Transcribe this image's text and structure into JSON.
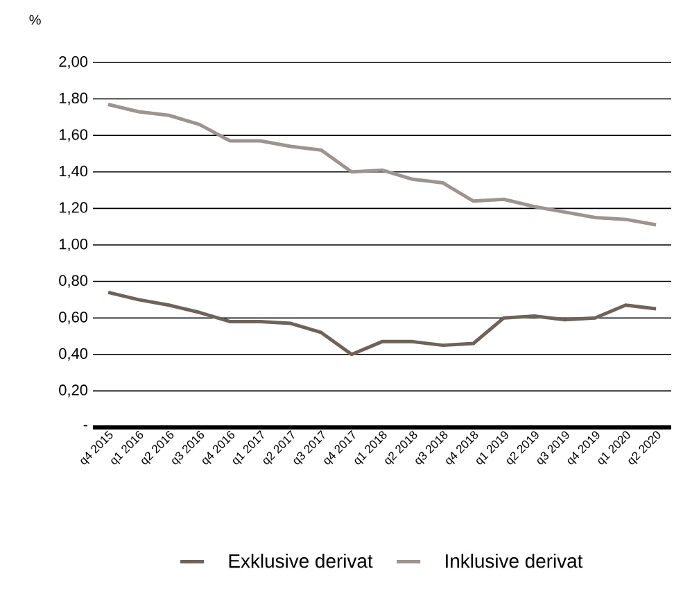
{
  "chart_data": {
    "type": "line",
    "ylabel": "%",
    "categories": [
      "q4 2015",
      "q1 2016",
      "q2 2016",
      "q3 2016",
      "q4 2016",
      "q1 2017",
      "q2 2017",
      "q3 2017",
      "q4 2017",
      "q1 2018",
      "q2 2018",
      "q3 2018",
      "q4 2018",
      "q1 2019",
      "q2 2019",
      "q3 2019",
      "q4 2019",
      "q1 2020",
      "q2 2020"
    ],
    "series": [
      {
        "name": "Exklusive derivat",
        "color": "#6e625b",
        "values": [
          0.74,
          0.7,
          0.67,
          0.63,
          0.58,
          0.58,
          0.57,
          0.52,
          0.4,
          0.47,
          0.47,
          0.45,
          0.46,
          0.6,
          0.61,
          0.59,
          0.6,
          0.67,
          0.65
        ]
      },
      {
        "name": "Inklusive derivat",
        "color": "#9c9490",
        "values": [
          1.77,
          1.73,
          1.71,
          1.66,
          1.57,
          1.57,
          1.54,
          1.52,
          1.4,
          1.41,
          1.36,
          1.34,
          1.24,
          1.25,
          1.21,
          1.18,
          1.15,
          1.14,
          1.11
        ]
      }
    ],
    "ylim": [
      0,
      2
    ],
    "yticks": [
      {
        "value": 0,
        "label": "-"
      },
      {
        "value": 0.2,
        "label": "0,20"
      },
      {
        "value": 0.4,
        "label": "0,40"
      },
      {
        "value": 0.6,
        "label": "0,60"
      },
      {
        "value": 0.8,
        "label": "0,80"
      },
      {
        "value": 1.0,
        "label": "1,00"
      },
      {
        "value": 1.2,
        "label": "1,20"
      },
      {
        "value": 1.4,
        "label": "1,40"
      },
      {
        "value": 1.6,
        "label": "1,60"
      },
      {
        "value": 1.8,
        "label": "1,80"
      },
      {
        "value": 2.0,
        "label": "2,00"
      }
    ],
    "grid": "y",
    "legend": "bottom"
  }
}
